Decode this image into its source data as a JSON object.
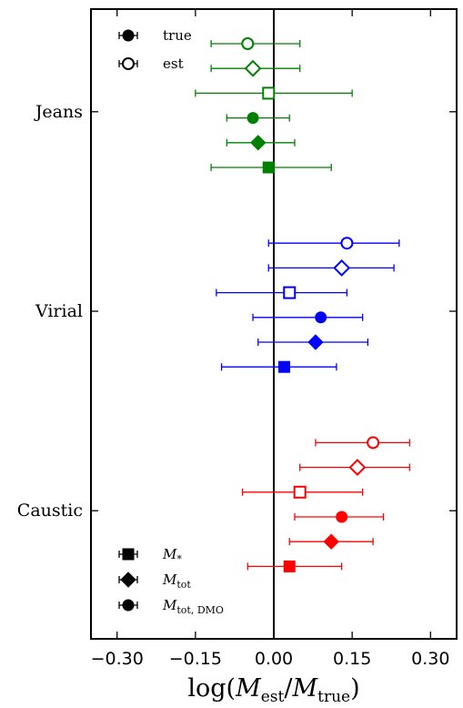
{
  "chart_data": {
    "type": "scatter",
    "orientation": "horizontal-errorbars",
    "title": "",
    "xlabel": "log(M_est / M_true)",
    "xlabel_parts": {
      "prefix": "log(",
      "num": "M",
      "num_sub": "est",
      "slash": "/",
      "den": "M",
      "den_sub": "true",
      "suffix": ")"
    },
    "xlim": [
      -0.35,
      0.35
    ],
    "xticks": [
      -0.3,
      -0.15,
      0.0,
      0.15,
      0.3
    ],
    "xtick_labels": [
      "−0.30",
      "−0.15",
      "0.00",
      "0.15",
      "0.30"
    ],
    "reference_line_x": 0.0,
    "categories": [
      "Jeans",
      "Virial",
      "Caustic"
    ],
    "legend_top": {
      "position": "top-left",
      "entries": [
        {
          "label": "true",
          "marker": "circle",
          "filled": true
        },
        {
          "label": "est",
          "marker": "circle",
          "filled": false
        }
      ]
    },
    "legend_bottom": {
      "position": "bottom-left",
      "entries": [
        {
          "label": "M",
          "sub": "*",
          "marker": "square"
        },
        {
          "label": "M",
          "sub": "tot",
          "marker": "diamond"
        },
        {
          "label": "M",
          "sub": "tot, DMO",
          "marker": "circle"
        }
      ]
    },
    "groups": [
      {
        "category": "Jeans",
        "color": "#008000",
        "points": [
          {
            "marker": "circle",
            "filled": false,
            "x": -0.05,
            "lo": -0.12,
            "hi": 0.05
          },
          {
            "marker": "diamond",
            "filled": false,
            "x": -0.04,
            "lo": -0.12,
            "hi": 0.05
          },
          {
            "marker": "square",
            "filled": false,
            "x": -0.01,
            "lo": -0.15,
            "hi": 0.15
          },
          {
            "marker": "circle",
            "filled": true,
            "x": -0.04,
            "lo": -0.09,
            "hi": 0.03
          },
          {
            "marker": "diamond",
            "filled": true,
            "x": -0.03,
            "lo": -0.09,
            "hi": 0.04
          },
          {
            "marker": "square",
            "filled": true,
            "x": -0.01,
            "lo": -0.12,
            "hi": 0.11
          }
        ]
      },
      {
        "category": "Virial",
        "color": "#0000ff",
        "points": [
          {
            "marker": "circle",
            "filled": false,
            "x": 0.14,
            "lo": -0.01,
            "hi": 0.24
          },
          {
            "marker": "diamond",
            "filled": false,
            "x": 0.13,
            "lo": -0.01,
            "hi": 0.23
          },
          {
            "marker": "square",
            "filled": false,
            "x": 0.03,
            "lo": -0.11,
            "hi": 0.14
          },
          {
            "marker": "circle",
            "filled": true,
            "x": 0.09,
            "lo": -0.04,
            "hi": 0.17
          },
          {
            "marker": "diamond",
            "filled": true,
            "x": 0.08,
            "lo": -0.03,
            "hi": 0.18
          },
          {
            "marker": "square",
            "filled": true,
            "x": 0.02,
            "lo": -0.1,
            "hi": 0.12
          }
        ]
      },
      {
        "category": "Caustic",
        "color": "#ff0000",
        "points": [
          {
            "marker": "circle",
            "filled": false,
            "x": 0.19,
            "lo": 0.08,
            "hi": 0.26
          },
          {
            "marker": "diamond",
            "filled": false,
            "x": 0.16,
            "lo": 0.05,
            "hi": 0.26
          },
          {
            "marker": "square",
            "filled": false,
            "x": 0.05,
            "lo": -0.06,
            "hi": 0.17
          },
          {
            "marker": "circle",
            "filled": true,
            "x": 0.13,
            "lo": 0.04,
            "hi": 0.21
          },
          {
            "marker": "diamond",
            "filled": true,
            "x": 0.11,
            "lo": 0.03,
            "hi": 0.19
          },
          {
            "marker": "square",
            "filled": true,
            "x": 0.03,
            "lo": -0.05,
            "hi": 0.13
          }
        ]
      }
    ]
  }
}
